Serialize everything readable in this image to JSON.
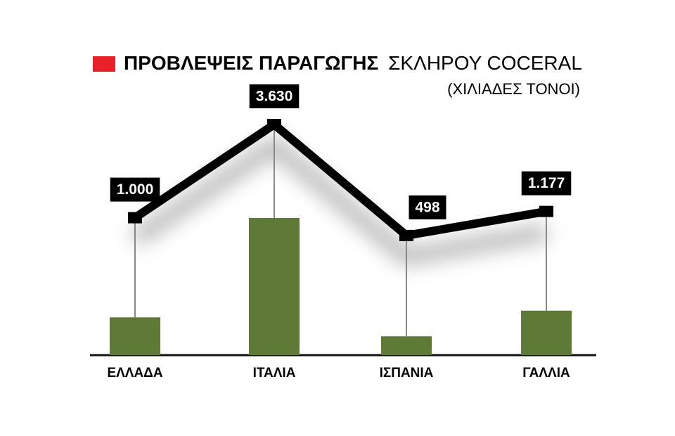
{
  "chart_data": {
    "type": "bar-line",
    "title": "ΠΡΟΒΛΕΨΕΙΣ ΠΑΡΑΓΩΓΗΣ",
    "subtitle": "ΣΚΛΗΡΟΥ COCERAL",
    "unit": "(ΧΙΛΙΑΔΕΣ ΤΟΝΟΙ)",
    "categories": [
      "ΕΛΛΑΔΑ",
      "ΙΤΑΛΙΑ",
      "ΙΣΠΑΝΙΑ",
      "ΓΑΛΛΙΑ"
    ],
    "values": [
      1000,
      3630,
      498,
      1177
    ],
    "value_labels": [
      "1.000",
      "3.630",
      "498",
      "1.177"
    ],
    "color": "#5f7a36",
    "line_color": "#000000",
    "marker_color": "#e8202a"
  }
}
